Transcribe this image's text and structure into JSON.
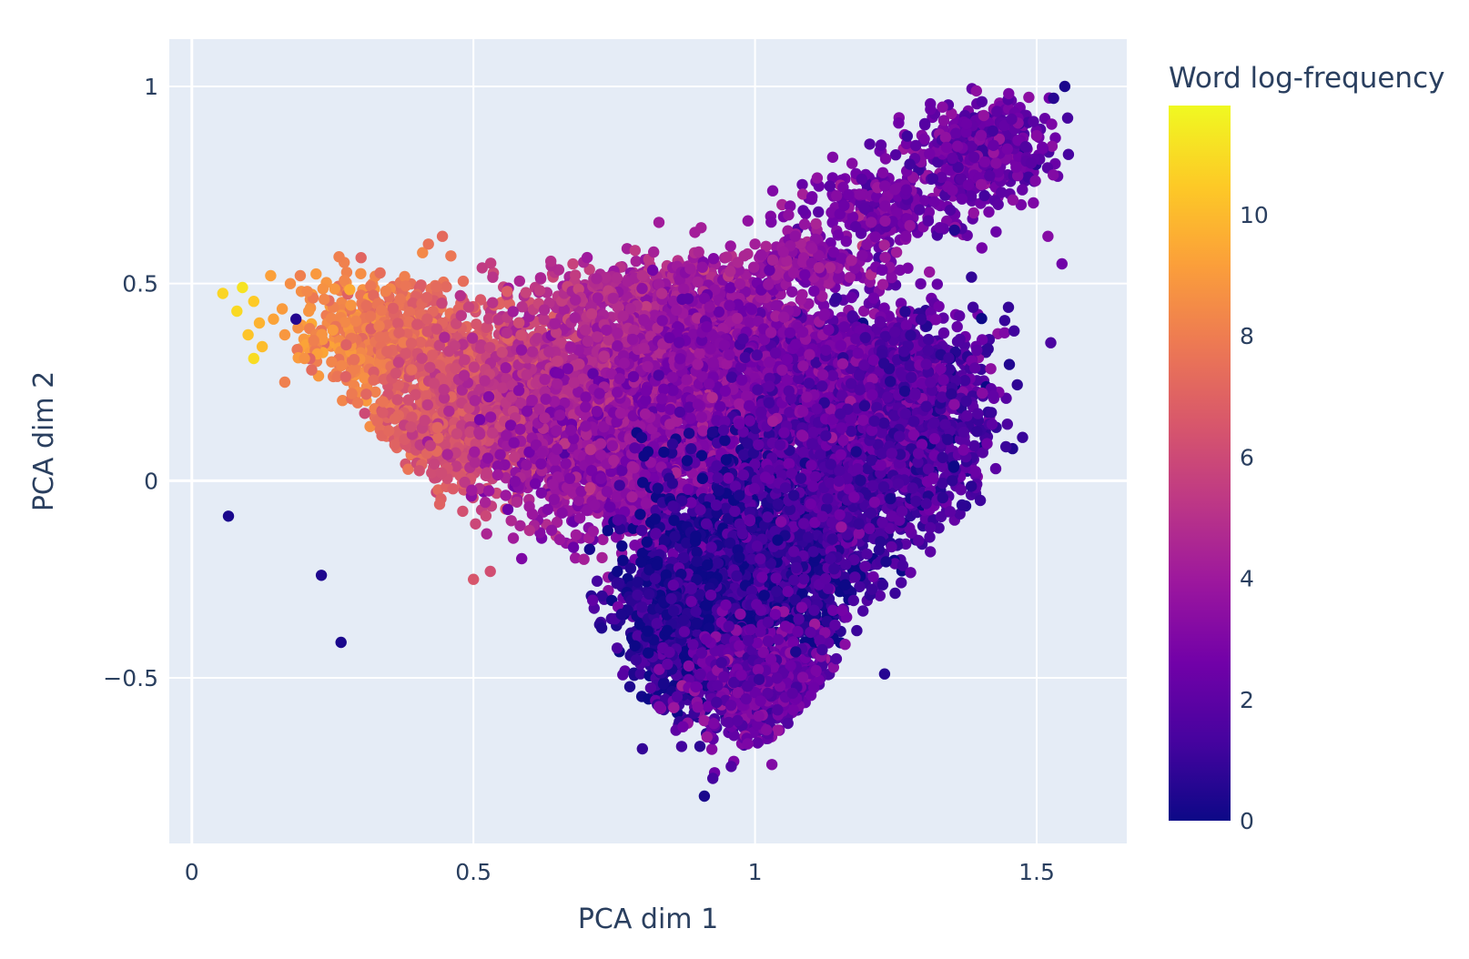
{
  "chart_data": {
    "type": "scatter",
    "xlabel": "PCA dim 1",
    "ylabel": "PCA dim 2",
    "xlim": [
      -0.04,
      1.66
    ],
    "ylim": [
      -0.92,
      1.12
    ],
    "xticks": [
      {
        "v": 0,
        "label": "0"
      },
      {
        "v": 0.5,
        "label": "0.5"
      },
      {
        "v": 1,
        "label": "1"
      },
      {
        "v": 1.5,
        "label": "1.5"
      }
    ],
    "yticks": [
      {
        "v": -0.5,
        "label": "−0.5"
      },
      {
        "v": 0,
        "label": "0"
      },
      {
        "v": 0.5,
        "label": "0.5"
      },
      {
        "v": 1,
        "label": "1"
      }
    ],
    "grid": true,
    "background": "#e5ecf6",
    "colorbar": {
      "title": "Word log-frequency",
      "range": [
        0,
        11.8
      ],
      "ticks": [
        {
          "v": 0,
          "label": "0"
        },
        {
          "v": 2,
          "label": "2"
        },
        {
          "v": 4,
          "label": "4"
        },
        {
          "v": 6,
          "label": "6"
        },
        {
          "v": 8,
          "label": "8"
        },
        {
          "v": 10,
          "label": "10"
        }
      ],
      "colorscale": [
        "#0d0887",
        "#46039f",
        "#7201a8",
        "#9c179e",
        "#bd3786",
        "#d8576b",
        "#ed7953",
        "#fb9f3a",
        "#fdca26",
        "#f0f921"
      ]
    },
    "points": [
      [
        0.065,
        -0.09,
        0.3
      ],
      [
        0.23,
        -0.24,
        0.4
      ],
      [
        0.265,
        -0.41,
        0.3
      ],
      [
        0.185,
        0.41,
        0.5
      ],
      [
        0.055,
        0.475,
        10.8
      ],
      [
        0.09,
        0.49,
        11.2
      ],
      [
        0.11,
        0.455,
        10.5
      ],
      [
        0.08,
        0.43,
        10.9
      ],
      [
        0.12,
        0.4,
        9.8
      ],
      [
        0.145,
        0.41,
        9.3
      ],
      [
        0.1,
        0.37,
        10.3
      ],
      [
        0.125,
        0.34,
        10.1
      ],
      [
        0.11,
        0.31,
        11.0
      ],
      [
        0.165,
        0.37,
        8.9
      ],
      [
        0.14,
        0.52,
        9.2
      ],
      [
        0.175,
        0.5,
        8.6
      ],
      [
        0.205,
        0.48,
        8.4
      ],
      [
        0.165,
        0.25,
        8.1
      ],
      [
        0.2,
        0.31,
        8.7
      ],
      [
        0.235,
        0.46,
        8.3
      ],
      [
        0.3,
        0.525,
        8.6
      ],
      [
        0.42,
        0.6,
        7.6
      ],
      [
        0.445,
        0.62,
        7.3
      ],
      [
        0.46,
        0.57,
        7.8
      ],
      [
        0.44,
        -0.06,
        7.0
      ],
      [
        0.5,
        -0.25,
        6.5
      ],
      [
        0.53,
        -0.23,
        6.2
      ],
      [
        0.56,
        0.48,
        6.8
      ],
      [
        0.8,
        0.52,
        4.9
      ],
      [
        0.82,
        0.58,
        4.3
      ],
      [
        0.9,
        0.58,
        4.5
      ],
      [
        1.0,
        0.6,
        4.2
      ],
      [
        1.45,
        0.44,
        0.9
      ],
      [
        1.46,
        0.38,
        1.2
      ],
      [
        1.52,
        0.62,
        3.2
      ],
      [
        1.545,
        0.55,
        2.6
      ],
      [
        1.525,
        0.35,
        1.5
      ],
      [
        1.55,
        1.0,
        0.3
      ],
      [
        1.53,
        0.97,
        0.6
      ],
      [
        1.555,
        0.92,
        1.3
      ],
      [
        0.91,
        -0.8,
        0.3
      ],
      [
        0.8,
        -0.68,
        0.9
      ],
      [
        0.925,
        -0.755,
        1.3
      ],
      [
        1.03,
        -0.72,
        3.1
      ],
      [
        1.23,
        -0.49,
        0.6
      ],
      [
        1.35,
        0.0,
        0.8
      ],
      [
        1.4,
        -0.05,
        1.1
      ],
      [
        1.475,
        0.11,
        1.0
      ]
    ],
    "clusters": [
      {
        "n": 520,
        "cx": 0.34,
        "cy": 0.37,
        "sx": 0.07,
        "sy": 0.07,
        "c0": 7.8,
        "cs": 0.08,
        "ch": 6.0,
        "cj": 0.7
      },
      {
        "n": 820,
        "cx": 0.52,
        "cy": 0.26,
        "sx": 0.1,
        "sy": 0.08,
        "c0": 6.4,
        "cs": 0.1,
        "ch": 5.0,
        "cj": 0.9
      },
      {
        "n": 500,
        "cx": 0.48,
        "cy": 0.12,
        "sx": 0.08,
        "sy": 0.09,
        "c0": 6.2,
        "cs": 0.1,
        "ch": 5.0,
        "cj": 1.0
      },
      {
        "n": 1100,
        "cx": 0.72,
        "cy": 0.22,
        "sx": 0.12,
        "sy": 0.09,
        "c0": 4.5,
        "cs": 0.2,
        "ch": 3.3,
        "cj": 1.3
      },
      {
        "n": 900,
        "cx": 0.78,
        "cy": 0.02,
        "sx": 0.12,
        "sy": 0.09,
        "c0": 3.3,
        "cs": 0.3,
        "ch": 2.4,
        "cj": 1.4
      },
      {
        "n": 500,
        "cx": 0.8,
        "cy": 0.46,
        "sx": 0.11,
        "sy": 0.05,
        "c0": 4.5,
        "cs": 0.3,
        "ch": 3.6,
        "cj": 0.8
      },
      {
        "n": 600,
        "cx": 0.92,
        "cy": 0.38,
        "sx": 0.1,
        "sy": 0.06,
        "c0": 3.8,
        "cs": 0.3,
        "ch": 3.0,
        "cj": 1.0
      },
      {
        "n": 1300,
        "cx": 0.98,
        "cy": 0.2,
        "sx": 0.13,
        "sy": 0.11,
        "c0": 3.0,
        "cs": 0.3,
        "ch": 2.3,
        "cj": 1.3
      },
      {
        "n": 1600,
        "cx": 1.0,
        "cy": -0.2,
        "sx": 0.1,
        "sy": 0.14,
        "c0": 0.7,
        "cs": 1.0,
        "ch": 0.8,
        "cj": 0.8
      },
      {
        "n": 900,
        "cx": 0.89,
        "cy": -0.38,
        "sx": 0.06,
        "sy": 0.1,
        "c0": 0.6,
        "cs": 1.0,
        "ch": 0.6,
        "cj": 0.6
      },
      {
        "n": 700,
        "cx": 1.02,
        "cy": -0.52,
        "sx": 0.07,
        "sy": 0.08,
        "c0": 2.4,
        "cs": 0.5,
        "ch": 1.8,
        "cj": 1.0
      },
      {
        "n": 900,
        "cx": 1.16,
        "cy": 0.05,
        "sx": 0.09,
        "sy": 0.14,
        "c0": 1.5,
        "cs": 0.4,
        "ch": 1.2,
        "cj": 1.0
      },
      {
        "n": 800,
        "cx": 1.22,
        "cy": 0.25,
        "sx": 0.09,
        "sy": 0.09,
        "c0": 2.3,
        "cs": 0.5,
        "ch": 1.8,
        "cj": 1.1
      },
      {
        "n": 400,
        "cx": 1.3,
        "cy": 0.12,
        "sx": 0.07,
        "sy": 0.12,
        "c0": 1.6,
        "cs": 0.5,
        "ch": 1.3,
        "cj": 1.0
      },
      {
        "n": 260,
        "cx": 1.24,
        "cy": 0.7,
        "sx": 0.09,
        "sy": 0.06,
        "c0": 2.6,
        "cs": 0.4,
        "ch": 1.9,
        "cj": 0.9
      },
      {
        "n": 380,
        "cx": 1.4,
        "cy": 0.84,
        "sx": 0.06,
        "sy": 0.06,
        "c0": 2.4,
        "cs": 0.5,
        "ch": 1.9,
        "cj": 0.9
      },
      {
        "n": 200,
        "cx": 1.1,
        "cy": 0.55,
        "sx": 0.08,
        "sy": 0.05,
        "c0": 3.6,
        "cs": 0.4,
        "ch": 2.8,
        "cj": 0.9
      }
    ]
  }
}
